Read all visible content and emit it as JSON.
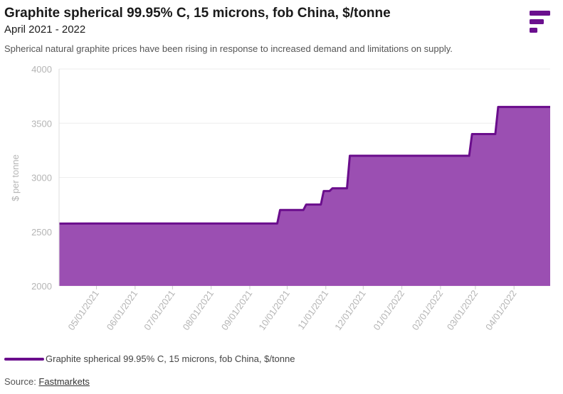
{
  "header": {
    "title": "Graphite spherical 99.95% C, 15 microns, fob China, $/tonne",
    "subtitle": "April 2021 - 2022",
    "description": "Spherical natural graphite prices have been rising in response to increased demand and limitations on supply."
  },
  "logo": {
    "icon": "fastmarkets-logo-icon",
    "color": "#6b0f8e"
  },
  "legend": {
    "label": "Graphite spherical 99.95% C, 15 microns, fob China, $/tonne"
  },
  "source": {
    "prefix": "Source: ",
    "link": "Fastmarkets"
  },
  "colors": {
    "line": "#6a0d8c",
    "fill": "#9b4fb2",
    "grid": "#eeeeee",
    "axis_text": "#b5b5b5"
  },
  "chart_data": {
    "type": "area",
    "title": "Graphite spherical 99.95% C, 15 microns, fob China, $/tonne",
    "subtitle": "April 2021 - 2022",
    "xlabel": "",
    "ylabel": "$ per tonne",
    "ylim": [
      2000,
      4000
    ],
    "yticks": [
      2000,
      2500,
      3000,
      3500,
      4000
    ],
    "xlim": [
      "2021-04-01",
      "2022-04-30"
    ],
    "xticks": [
      "2021-05-01",
      "2021-06-01",
      "2021-07-01",
      "2021-08-01",
      "2021-09-01",
      "2021-10-01",
      "2021-11-01",
      "2021-12-01",
      "2022-01-01",
      "2022-02-01",
      "2022-03-01",
      "2022-04-01"
    ],
    "xtick_labels": [
      "05/01/2021",
      "06/01/2021",
      "07/01/2021",
      "08/01/2021",
      "09/01/2021",
      "10/01/2021",
      "11/01/2021",
      "12/01/2021",
      "01/01/2022",
      "02/01/2022",
      "03/01/2022",
      "04/01/2022"
    ],
    "grid": true,
    "legend_position": "bottom-left",
    "series": [
      {
        "name": "Graphite spherical 99.95% C, 15 microns, fob China, $/tonne",
        "step": true,
        "x": [
          "2021-04-01",
          "2021-09-23",
          "2021-10-14",
          "2021-10-28",
          "2021-11-04",
          "2021-11-18",
          "2022-02-24",
          "2022-03-17",
          "2022-04-30"
        ],
        "values": [
          2575,
          2700,
          2750,
          2875,
          2900,
          3200,
          3400,
          3650,
          3650
        ]
      }
    ]
  }
}
